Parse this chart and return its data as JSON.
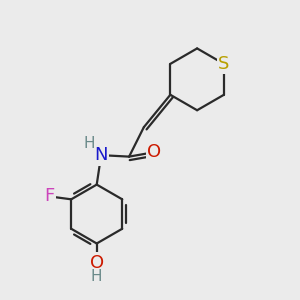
{
  "bg_color": "#ebebeb",
  "bond_color": "#2a2a2a",
  "S_color": "#b8a000",
  "N_color": "#1a1acc",
  "O_color": "#cc1a00",
  "F_color": "#cc44bb",
  "H_color": "#6a8a8a",
  "bond_width": 1.6,
  "font_size": 12,
  "fig_size": [
    3.0,
    3.0
  ],
  "dpi": 100,
  "xlim": [
    0,
    10
  ],
  "ylim": [
    0,
    10
  ]
}
